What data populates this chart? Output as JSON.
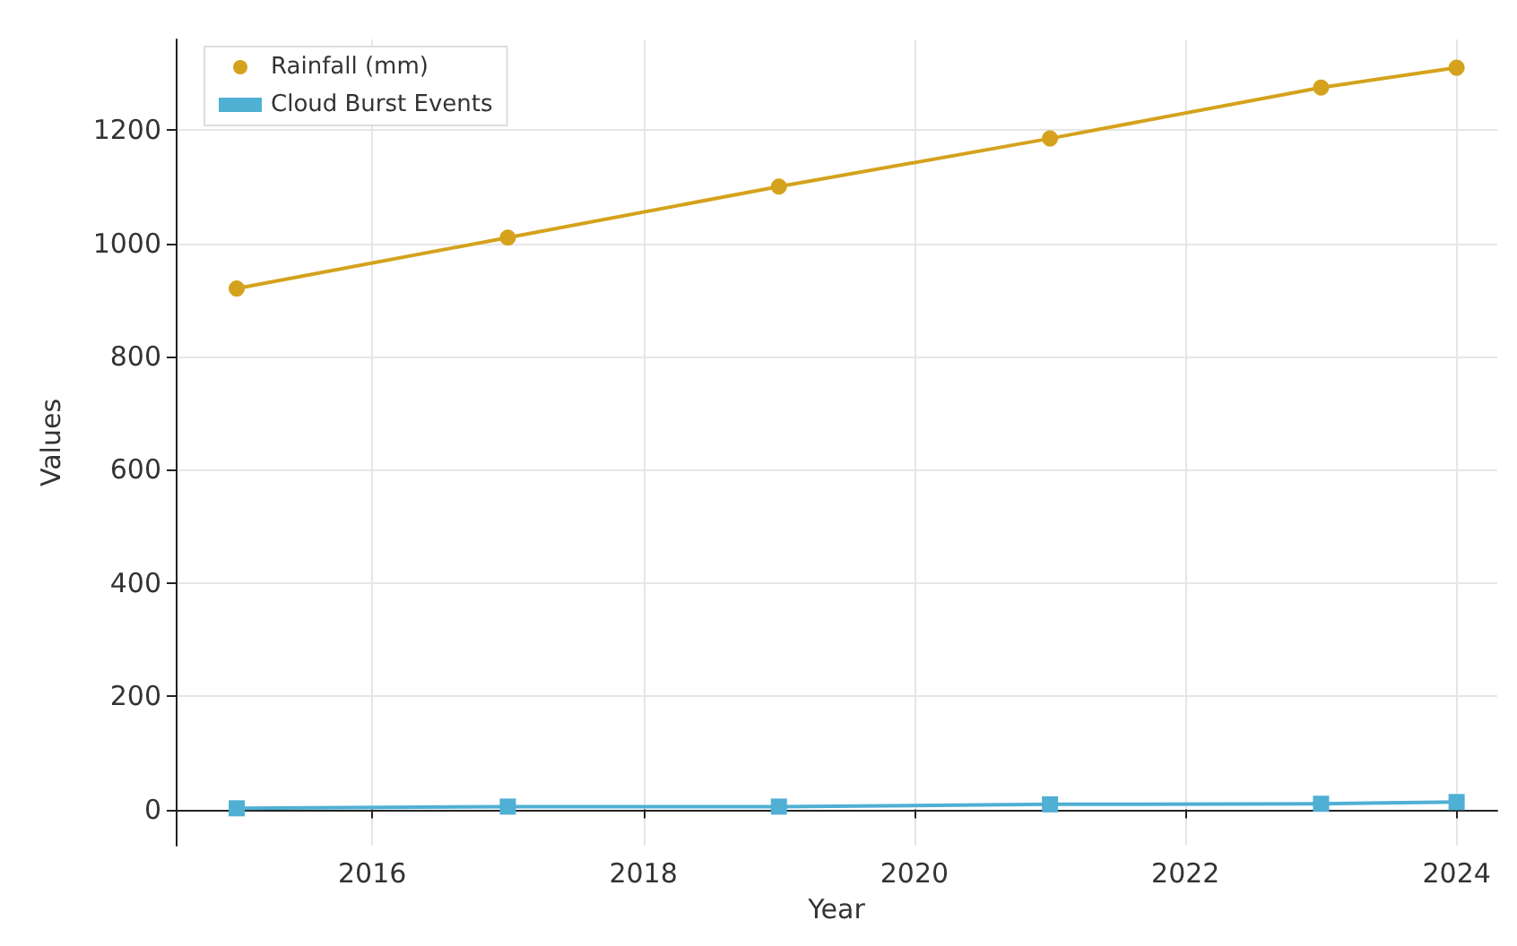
{
  "chart_data": {
    "type": "line",
    "xlabel": "Year",
    "ylabel": "Values",
    "x": [
      2015,
      2017,
      2019,
      2021,
      2023,
      2024
    ],
    "series": [
      {
        "name": "Rainfall (mm)",
        "color": "#d4a21c",
        "marker": "circle",
        "values": [
          920,
          1010,
          1100,
          1185,
          1275,
          1310
        ]
      },
      {
        "name": "Cloud Burst Events",
        "color": "#4fb0d4",
        "marker": "square",
        "values": [
          2,
          5,
          5,
          9,
          10,
          13
        ]
      }
    ],
    "xlim": [
      2014.55,
      2024.3
    ],
    "xticks": [
      2016,
      2018,
      2020,
      2022,
      2024
    ],
    "ylim": [
      -64,
      1360
    ],
    "yticks": [
      0,
      200,
      400,
      600,
      800,
      1000,
      1200
    ],
    "grid": true,
    "legend": "top left",
    "line_style": "solid"
  }
}
